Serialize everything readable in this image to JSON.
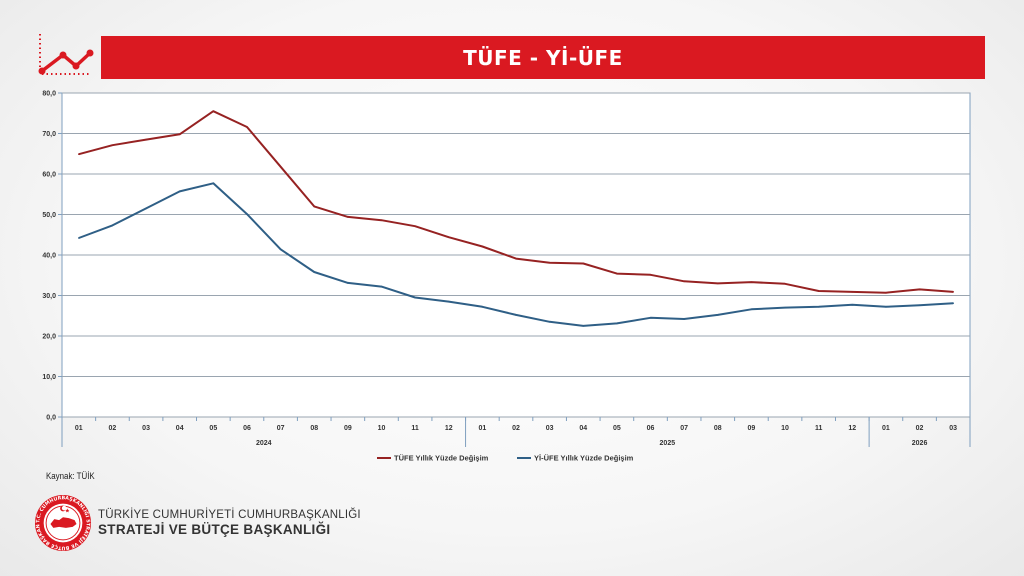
{
  "title": "TÜFE - Yİ-ÜFE",
  "source": "Kaynak: TÜİK",
  "org": {
    "line1": "TÜRKİYE CUMHURİYETİ CUMHURBAŞKANLIĞI",
    "line2": "STRATEJİ VE BÜTÇE BAŞKANLIĞI",
    "seal_text": "T.C. CUMHURBAŞKANLIĞI STRATEJİ VE BÜTÇE BAŞKANLIĞI"
  },
  "colors": {
    "accent": "#da1921",
    "tufe": "#962222",
    "yiufe": "#2f5f86",
    "grid": "#9aa5b0",
    "axis": "#7f9fbf"
  },
  "chart_data": {
    "type": "line",
    "title": "",
    "xlabel": "",
    "ylabel": "",
    "ylim": [
      0,
      80
    ],
    "yticks": [
      "0,0",
      "10,0",
      "20,0",
      "30,0",
      "40,0",
      "50,0",
      "60,0",
      "70,0",
      "80,0"
    ],
    "grid": true,
    "legend_position": "bottom",
    "x": [
      "01",
      "02",
      "03",
      "04",
      "05",
      "06",
      "07",
      "08",
      "09",
      "10",
      "11",
      "12",
      "01",
      "02",
      "03",
      "04",
      "05",
      "06",
      "07",
      "08",
      "09",
      "10",
      "11",
      "12",
      "01",
      "02",
      "03"
    ],
    "year_groups": [
      {
        "label": "2024",
        "start": 0,
        "end": 11
      },
      {
        "label": "2025",
        "start": 12,
        "end": 23
      },
      {
        "label": "2026",
        "start": 24,
        "end": 26
      }
    ],
    "series": [
      {
        "name": "TÜFE Yıllık Yüzde Değişim",
        "color": "#962222",
        "values": [
          64.9,
          67.1,
          68.5,
          69.8,
          75.5,
          71.6,
          61.8,
          52.0,
          49.4,
          48.6,
          47.1,
          44.4,
          42.1,
          39.1,
          38.1,
          37.9,
          35.4,
          35.1,
          33.5,
          33.0,
          33.3,
          32.9,
          31.1,
          30.9,
          30.7,
          31.5,
          30.9
        ]
      },
      {
        "name": "Yİ-ÜFE Yıllık Yüzde Değişim",
        "color": "#2f5f86",
        "values": [
          44.2,
          47.3,
          51.5,
          55.7,
          57.7,
          50.1,
          41.4,
          35.8,
          33.1,
          32.2,
          29.5,
          28.5,
          27.2,
          25.2,
          23.5,
          22.5,
          23.1,
          24.5,
          24.2,
          25.2,
          26.6,
          27.0,
          27.2,
          27.7,
          27.2,
          27.6,
          28.1
        ]
      }
    ]
  }
}
